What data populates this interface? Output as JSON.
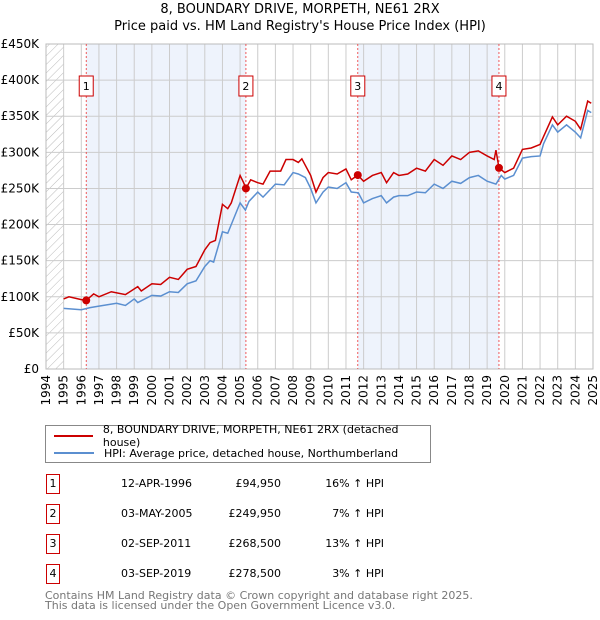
{
  "chart_data": {
    "type": "line",
    "title": "8, BOUNDARY DRIVE, MORPETH, NE61 2RX",
    "subtitle": "Price paid vs. HM Land Registry's House Price Index (HPI)",
    "xlim": [
      1994,
      2025
    ],
    "ylim": [
      0,
      450000
    ],
    "x_ticks": [
      "1994",
      "1995",
      "1996",
      "1997",
      "1998",
      "1999",
      "2000",
      "2001",
      "2002",
      "2003",
      "2004",
      "2005",
      "2006",
      "2007",
      "2008",
      "2009",
      "2010",
      "2011",
      "2012",
      "2013",
      "2014",
      "2015",
      "2016",
      "2017",
      "2018",
      "2019",
      "2020",
      "2021",
      "2022",
      "2023",
      "2024",
      "2025"
    ],
    "y_ticks": [
      {
        "v": 0,
        "l": "£0"
      },
      {
        "v": 50000,
        "l": "£50K"
      },
      {
        "v": 100000,
        "l": "£100K"
      },
      {
        "v": 150000,
        "l": "£150K"
      },
      {
        "v": 200000,
        "l": "£200K"
      },
      {
        "v": 250000,
        "l": "£250K"
      },
      {
        "v": 300000,
        "l": "£300K"
      },
      {
        "v": 350000,
        "l": "£350K"
      },
      {
        "v": 400000,
        "l": "£400K"
      },
      {
        "v": 450000,
        "l": "£450K"
      }
    ],
    "grid": true,
    "series": [
      {
        "name": "8, BOUNDARY DRIVE, MORPETH, NE61 2RX (detached house)",
        "color": "#cc0000",
        "points": [
          [
            1995,
            97
          ],
          [
            1995.3,
            100
          ],
          [
            1996,
            96
          ],
          [
            1996.28,
            95
          ],
          [
            1996.7,
            104
          ],
          [
            1997,
            100
          ],
          [
            1997.7,
            107
          ],
          [
            1998.5,
            103
          ],
          [
            1999.2,
            114
          ],
          [
            1999.4,
            108
          ],
          [
            2000,
            118
          ],
          [
            2000.5,
            117
          ],
          [
            2001,
            127
          ],
          [
            2001.5,
            124
          ],
          [
            2002,
            138
          ],
          [
            2002.5,
            142
          ],
          [
            2003,
            165
          ],
          [
            2003.3,
            175
          ],
          [
            2003.6,
            178
          ],
          [
            2004,
            228
          ],
          [
            2004.3,
            222
          ],
          [
            2004.5,
            230
          ],
          [
            2005,
            268
          ],
          [
            2005.2,
            258
          ],
          [
            2005.33,
            250
          ],
          [
            2005.6,
            262
          ],
          [
            2006,
            258
          ],
          [
            2006.3,
            256
          ],
          [
            2006.7,
            274
          ],
          [
            2007.3,
            274
          ],
          [
            2007.6,
            290
          ],
          [
            2008,
            290
          ],
          [
            2008.3,
            286
          ],
          [
            2008.5,
            291
          ],
          [
            2009,
            268
          ],
          [
            2009.3,
            245
          ],
          [
            2009.7,
            265
          ],
          [
            2010,
            272
          ],
          [
            2010.5,
            270
          ],
          [
            2011,
            277
          ],
          [
            2011.3,
            262
          ],
          [
            2011.67,
            268.5
          ],
          [
            2012,
            260
          ],
          [
            2012.5,
            268
          ],
          [
            2013,
            272
          ],
          [
            2013.3,
            258
          ],
          [
            2013.7,
            272
          ],
          [
            2014,
            268
          ],
          [
            2014.5,
            270
          ],
          [
            2015,
            278
          ],
          [
            2015.5,
            274
          ],
          [
            2016,
            290
          ],
          [
            2016.5,
            282
          ],
          [
            2017,
            295
          ],
          [
            2017.5,
            290
          ],
          [
            2018,
            300
          ],
          [
            2018.5,
            302
          ],
          [
            2019,
            295
          ],
          [
            2019.4,
            290
          ],
          [
            2019.5,
            303
          ],
          [
            2019.67,
            278.5
          ],
          [
            2020,
            272
          ],
          [
            2020.5,
            278
          ],
          [
            2021,
            304
          ],
          [
            2021.5,
            306
          ],
          [
            2022,
            311
          ],
          [
            2022.2,
            322
          ],
          [
            2022.7,
            349
          ],
          [
            2023,
            338
          ],
          [
            2023.5,
            350
          ],
          [
            2024,
            343
          ],
          [
            2024.3,
            332
          ],
          [
            2024.7,
            371
          ],
          [
            2024.9,
            368
          ]
        ]
      },
      {
        "name": "HPI: Average price, detached house, Northumberland",
        "color": "#5b8fd0",
        "points": [
          [
            1995,
            84
          ],
          [
            1996,
            82
          ],
          [
            1996.5,
            85
          ],
          [
            1997,
            87
          ],
          [
            1998,
            91
          ],
          [
            1998.5,
            88
          ],
          [
            1999,
            97
          ],
          [
            1999.2,
            92
          ],
          [
            2000,
            102
          ],
          [
            2000.5,
            101
          ],
          [
            2001,
            107
          ],
          [
            2001.5,
            106
          ],
          [
            2002,
            118
          ],
          [
            2002.5,
            122
          ],
          [
            2003,
            142
          ],
          [
            2003.3,
            150
          ],
          [
            2003.5,
            148
          ],
          [
            2004,
            190
          ],
          [
            2004.3,
            188
          ],
          [
            2005,
            230
          ],
          [
            2005.3,
            220
          ],
          [
            2005.5,
            232
          ],
          [
            2006,
            245
          ],
          [
            2006.3,
            238
          ],
          [
            2007,
            256
          ],
          [
            2007.5,
            255
          ],
          [
            2008,
            272
          ],
          [
            2008.3,
            270
          ],
          [
            2008.7,
            265
          ],
          [
            2009,
            250
          ],
          [
            2009.3,
            230
          ],
          [
            2009.7,
            245
          ],
          [
            2010,
            252
          ],
          [
            2010.5,
            250
          ],
          [
            2011,
            258
          ],
          [
            2011.3,
            245
          ],
          [
            2011.7,
            244
          ],
          [
            2012,
            230
          ],
          [
            2012.5,
            236
          ],
          [
            2013,
            240
          ],
          [
            2013.3,
            230
          ],
          [
            2013.7,
            238
          ],
          [
            2014,
            240
          ],
          [
            2014.5,
            240
          ],
          [
            2015,
            245
          ],
          [
            2015.5,
            244
          ],
          [
            2016,
            256
          ],
          [
            2016.5,
            250
          ],
          [
            2017,
            260
          ],
          [
            2017.5,
            257
          ],
          [
            2018,
            265
          ],
          [
            2018.5,
            268
          ],
          [
            2019,
            260
          ],
          [
            2019.5,
            256
          ],
          [
            2019.8,
            268
          ],
          [
            2020,
            263
          ],
          [
            2020.5,
            268
          ],
          [
            2021,
            292
          ],
          [
            2021.5,
            294
          ],
          [
            2022,
            295
          ],
          [
            2022.2,
            312
          ],
          [
            2022.7,
            338
          ],
          [
            2023,
            328
          ],
          [
            2023.5,
            338
          ],
          [
            2024,
            328
          ],
          [
            2024.3,
            320
          ],
          [
            2024.7,
            358
          ],
          [
            2024.9,
            355
          ]
        ]
      }
    ],
    "sales": [
      {
        "n": "1",
        "x": 1996.28,
        "price": 94950,
        "date": "12-APR-1996",
        "price_label": "£94,950",
        "hpi": "16% ↑ HPI"
      },
      {
        "n": "2",
        "x": 2005.33,
        "price": 249950,
        "date": "03-MAY-2005",
        "price_label": "£249,950",
        "hpi": "7% ↑ HPI"
      },
      {
        "n": "3",
        "x": 2011.67,
        "price": 268500,
        "date": "02-SEP-2011",
        "price_label": "£268,500",
        "hpi": "13% ↑ HPI"
      },
      {
        "n": "4",
        "x": 2019.67,
        "price": 278500,
        "date": "03-SEP-2019",
        "price_label": "£278,500",
        "hpi": "3% ↑ HPI"
      }
    ]
  },
  "footer": {
    "line1": "Contains HM Land Registry data © Crown copyright and database right 2025.",
    "line2": "This data is licensed under the Open Government Licence v3.0."
  }
}
